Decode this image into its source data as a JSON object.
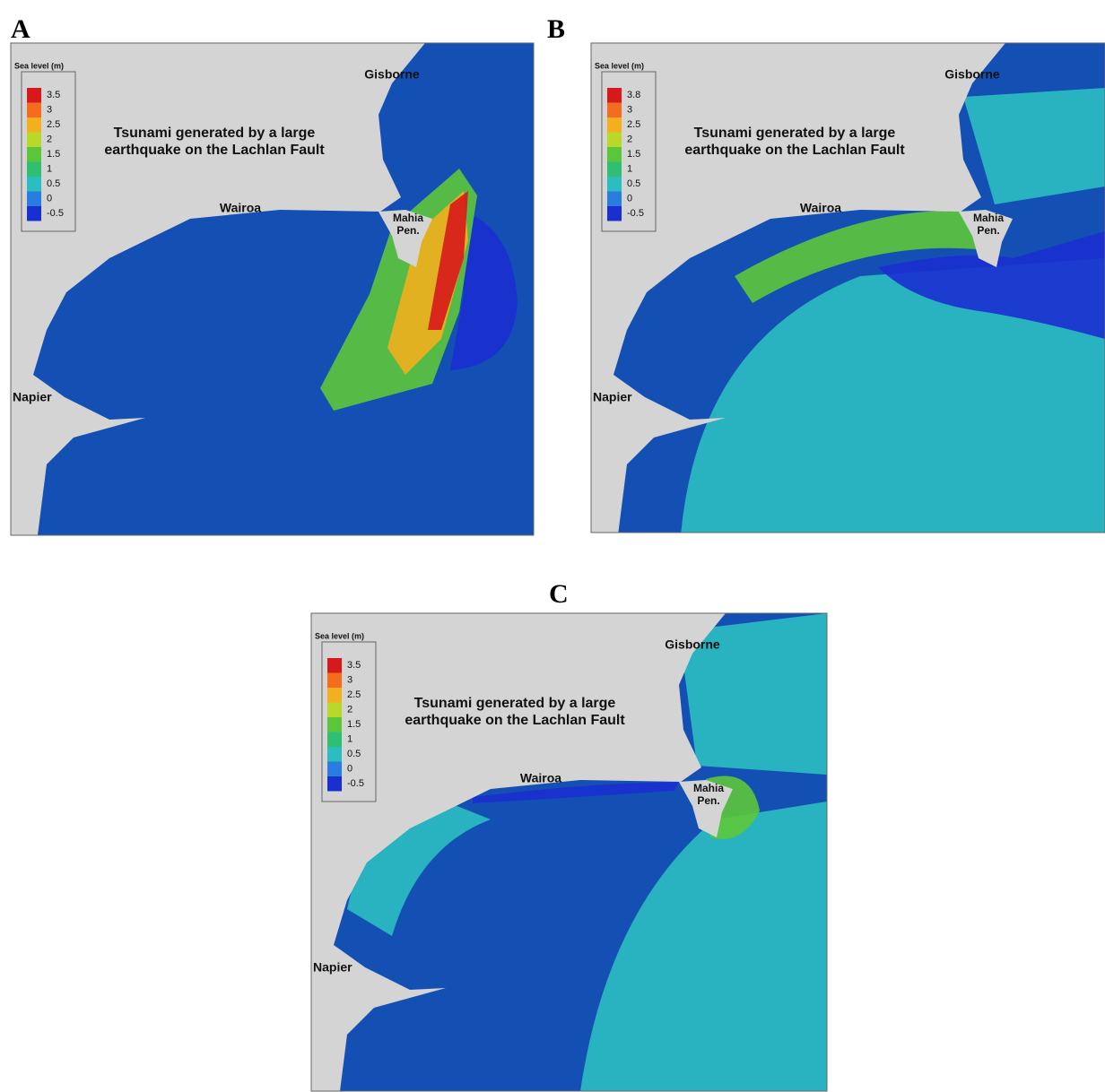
{
  "panels": [
    {
      "label": "A",
      "legend": {
        "title": "Sea level (m)",
        "values": [
          "3.5",
          "3",
          "2.5",
          "2",
          "1.5",
          "1",
          "0.5",
          "0",
          "-0.5"
        ]
      },
      "headline": [
        "Tsunami generated by a large",
        "earthquake on the Lachlan Fault"
      ],
      "places": {
        "gisborne": "Gisborne",
        "wairoa": "Wairoa",
        "mahia": [
          "Mahia",
          "Pen."
        ],
        "napier": "Napier"
      }
    },
    {
      "label": "B",
      "legend": {
        "title": "Sea level (m)",
        "values": [
          "3.8",
          "3",
          "2.5",
          "2",
          "1.5",
          "1",
          "0.5",
          "0",
          "-0.5"
        ]
      },
      "headline": [
        "Tsunami generated by a large",
        "earthquake on the Lachlan Fault"
      ],
      "places": {
        "gisborne": "Gisborne",
        "wairoa": "Wairoa",
        "mahia": [
          "Mahia",
          "Pen."
        ],
        "napier": "Napier"
      }
    },
    {
      "label": "C",
      "legend": {
        "title": "Sea level (m)",
        "values": [
          "3.5",
          "3",
          "2.5",
          "2",
          "1.5",
          "1",
          "0.5",
          "0",
          "-0.5"
        ]
      },
      "headline": [
        "Tsunami generated by a large",
        "earthquake on the Lachlan Fault"
      ],
      "places": {
        "gisborne": "Gisborne",
        "wairoa": "Wairoa",
        "mahia": [
          "Mahia",
          "Pen."
        ],
        "napier": "Napier"
      }
    }
  ]
}
